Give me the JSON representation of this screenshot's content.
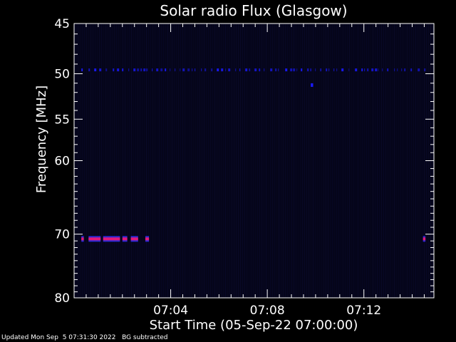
{
  "footer": {
    "updated": "Updated Mon Sep  5 07:31:30 2022",
    "note": "BG subtracted"
  },
  "chart_data": {
    "type": "heatmap",
    "title": "Solar radio Flux (Glasgow)",
    "xlabel": "Start Time (05-Sep-22 07:00:00)",
    "ylabel": "Frequency [MHz]",
    "x_unit": "minutes after 07:00:00",
    "xlim": [
      0,
      14.9
    ],
    "x_ticks": [
      {
        "value": 4,
        "label": "07:04"
      },
      {
        "value": 8,
        "label": "07:08"
      },
      {
        "value": 12,
        "label": "07:12"
      }
    ],
    "ylim": [
      45,
      80
    ],
    "y_scale": "log",
    "y_direction": "downward (45 at top, 80 at bottom)",
    "y_ticks": [
      45,
      50,
      55,
      60,
      70,
      80
    ],
    "background_color": "#05051a",
    "grid": false,
    "features": [
      {
        "frequency": 49.6,
        "from": 0.3,
        "to": 14.7,
        "level": "low",
        "color": "#1a1aff",
        "style": "intermittent"
      },
      {
        "frequency": 51.2,
        "from": 9.8,
        "to": 9.9,
        "level": "low",
        "color": "#1a1aff",
        "style": "spot"
      },
      {
        "frequency": 70.7,
        "from": 0.3,
        "to": 0.4,
        "level": "high",
        "color": "#e0197a"
      },
      {
        "frequency": 70.7,
        "from": 0.6,
        "to": 1.1,
        "level": "high",
        "color": "#e0197a"
      },
      {
        "frequency": 70.7,
        "from": 1.2,
        "to": 1.9,
        "level": "high",
        "color": "#e0197a"
      },
      {
        "frequency": 70.7,
        "from": 2.0,
        "to": 2.2,
        "level": "high",
        "color": "#e0197a"
      },
      {
        "frequency": 70.7,
        "from": 2.35,
        "to": 2.65,
        "level": "high",
        "color": "#e0197a"
      },
      {
        "frequency": 70.7,
        "from": 2.95,
        "to": 3.1,
        "level": "high",
        "color": "#e0197a"
      },
      {
        "frequency": 70.7,
        "from": 14.45,
        "to": 14.55,
        "level": "high",
        "color": "#e0197a"
      }
    ]
  }
}
